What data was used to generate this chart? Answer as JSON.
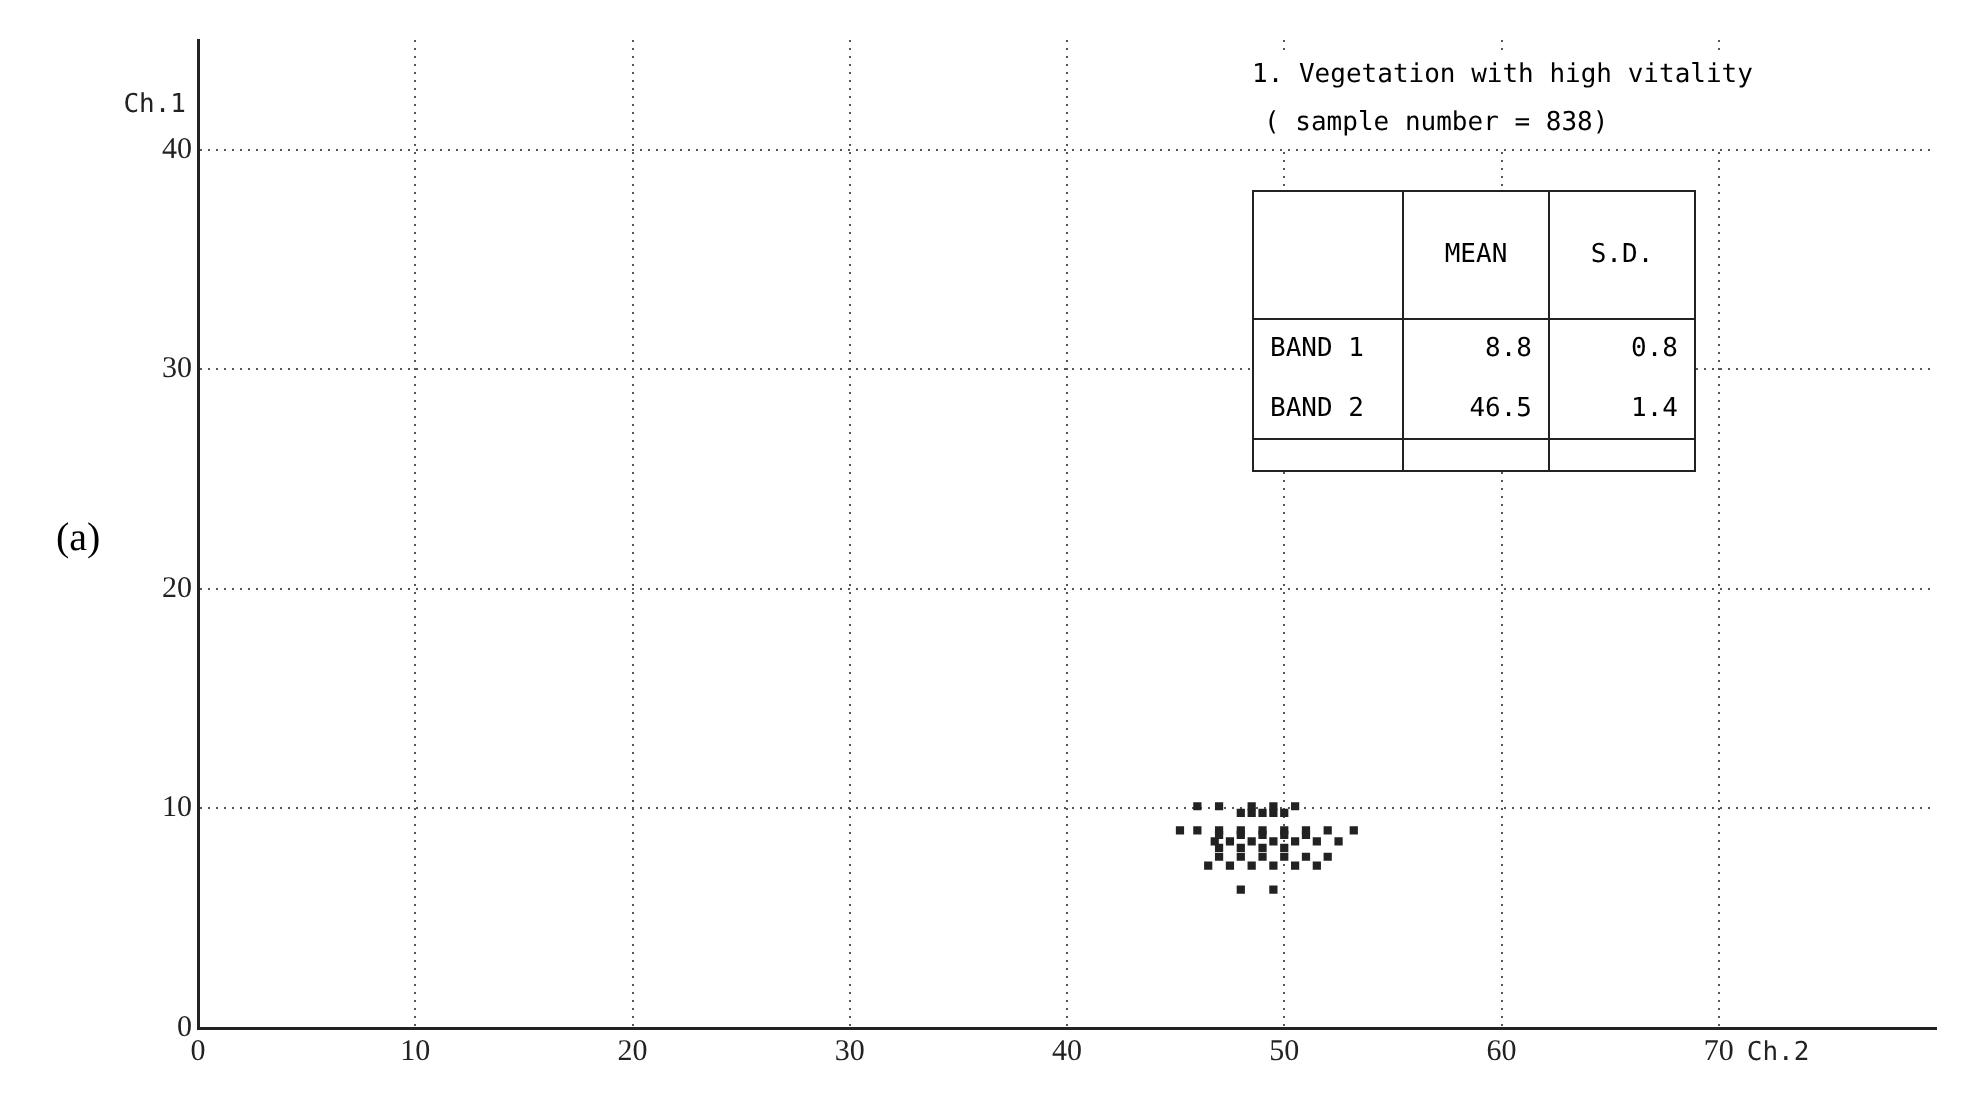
{
  "chart_data": {
    "type": "scatter",
    "title": "1. Vegetation with high vitality",
    "subtitle": "( sample number = 838)",
    "xlabel": "Ch.2",
    "ylabel": "Ch.1",
    "x": [
      46,
      47,
      48.5,
      49.5,
      50.5,
      48,
      48.5,
      49,
      49.5,
      50,
      45.2,
      46,
      47,
      48,
      49,
      50,
      51,
      52,
      53.2,
      47,
      48,
      49,
      50,
      51,
      46.8,
      47.5,
      48.5,
      49.5,
      50.5,
      51.5,
      52.5,
      47,
      48,
      49,
      50,
      47,
      48,
      49,
      50,
      51,
      52,
      46.5,
      47.5,
      48.5,
      49.5,
      50.5,
      51.5,
      48,
      49.5
    ],
    "series": [
      {
        "color": "#222222",
        "values": [
          10.1,
          10.1,
          10.1,
          10.1,
          10.1,
          9.8,
          9.8,
          9.8,
          9.8,
          9.8,
          9,
          9,
          9,
          9,
          9,
          9,
          9,
          9,
          9,
          8.8,
          8.8,
          8.8,
          8.8,
          8.8,
          8.5,
          8.5,
          8.5,
          8.5,
          8.5,
          8.5,
          8.5,
          8.2,
          8.2,
          8.2,
          8.2,
          7.8,
          7.8,
          7.8,
          7.8,
          7.8,
          7.8,
          7.4,
          7.4,
          7.4,
          7.4,
          7.4,
          7.4,
          6.3,
          6.3
        ]
      }
    ],
    "xlim": [
      0,
      80
    ],
    "xticks": [
      0,
      10,
      20,
      30,
      40,
      50,
      60,
      70
    ],
    "ylim": [
      0,
      45
    ],
    "yticks": [
      0,
      10,
      20,
      30,
      40
    ],
    "grid": true,
    "marker": "square",
    "legend": false,
    "annotations": [
      "(a)",
      "MEAN",
      "S.D.",
      "BAND 1",
      "8.8",
      "0.8",
      "BAND 2",
      "46.5",
      "1.4"
    ]
  }
}
